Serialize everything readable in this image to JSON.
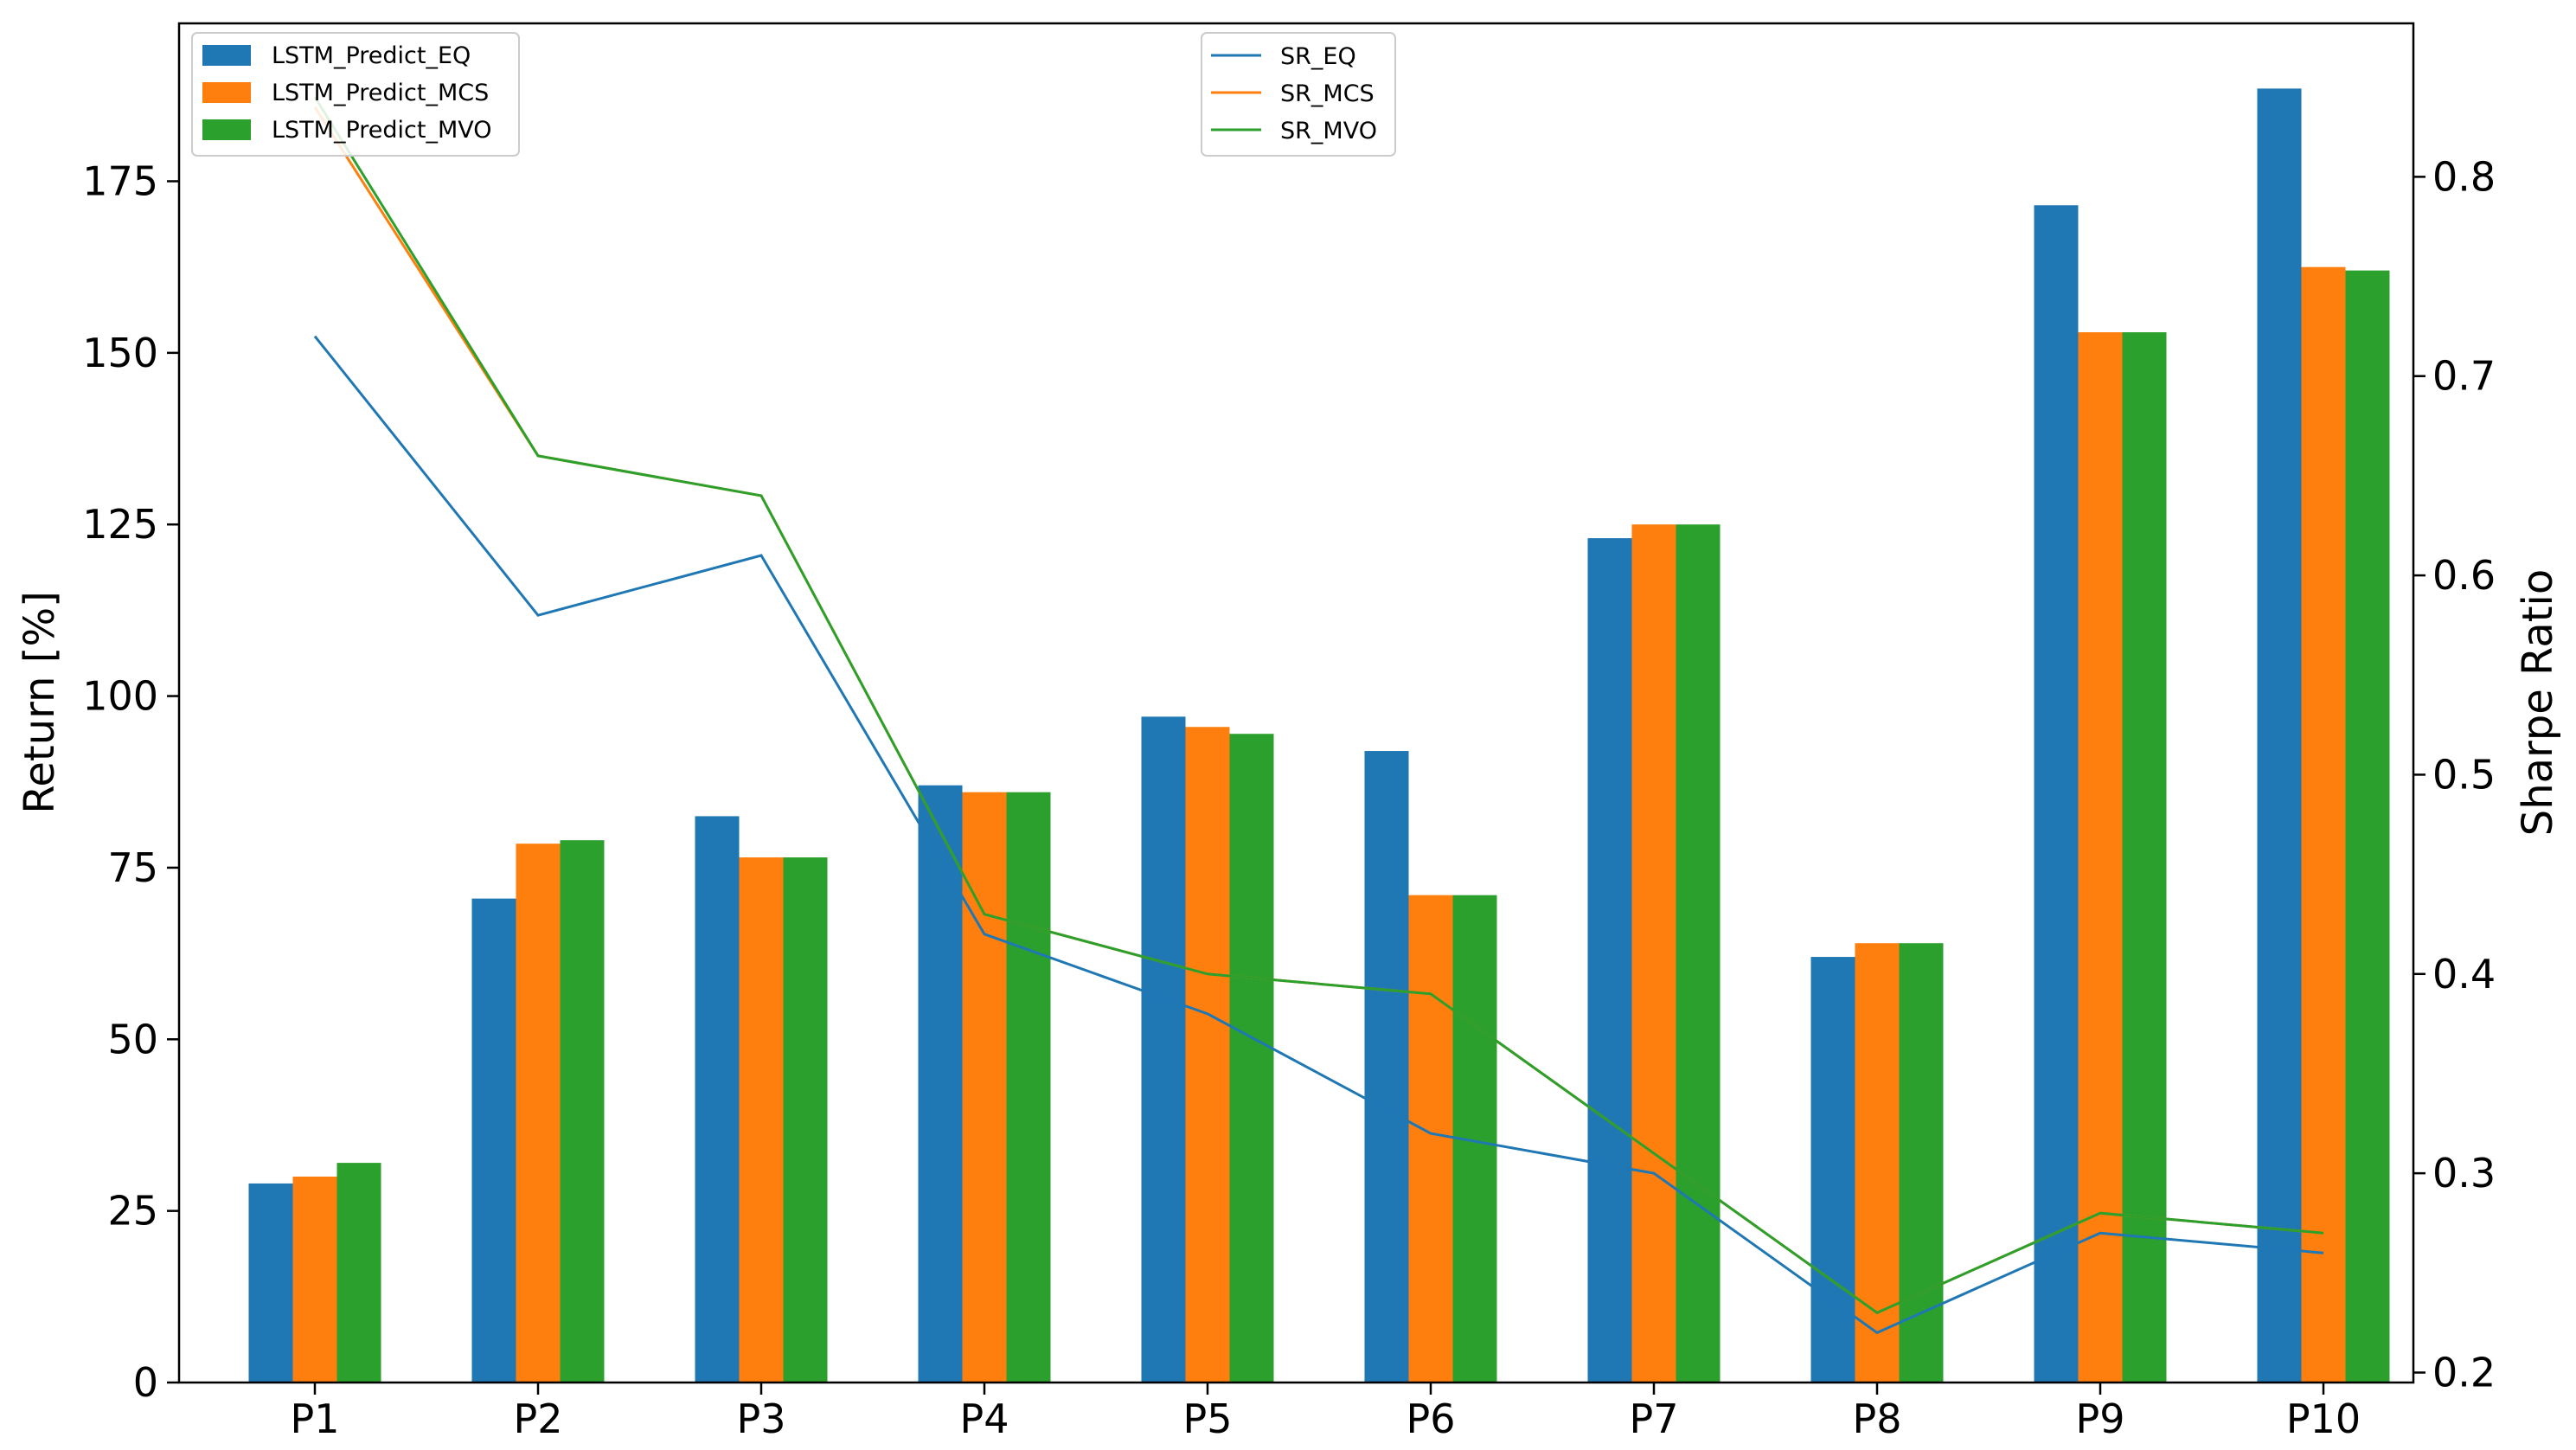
{
  "chart_data": {
    "type": "bar",
    "categories": [
      "P1",
      "P2",
      "P3",
      "P4",
      "P5",
      "P6",
      "P7",
      "P8",
      "P9",
      "P10"
    ],
    "ylabel": "Return [%]",
    "y2label": "Sharpe Ratio",
    "ylim": [
      0,
      198
    ],
    "y2lim": [
      0.195,
      0.877
    ],
    "yticks": [
      0,
      25,
      50,
      75,
      100,
      125,
      150,
      175
    ],
    "y2ticks": [
      0.2,
      0.3,
      0.4,
      0.5,
      0.6,
      0.7,
      0.8
    ],
    "grid": false,
    "bar_series": [
      {
        "name": "LSTM_Predict_EQ",
        "color": "#1f77b4",
        "values": [
          29,
          70.5,
          82.5,
          87,
          97,
          92,
          123,
          62,
          171.5,
          188.5
        ]
      },
      {
        "name": "LSTM_Predict_MCS",
        "color": "#ff7f0e",
        "values": [
          30,
          78.5,
          76.5,
          86,
          95.5,
          71,
          125,
          64,
          153,
          162.5
        ]
      },
      {
        "name": "LSTM_Predict_MVO",
        "color": "#2ca02c",
        "values": [
          32,
          79,
          76.5,
          86,
          94.5,
          71,
          125,
          64,
          153,
          162
        ]
      }
    ],
    "line_series": [
      {
        "name": "SR_EQ",
        "color": "#1f77b4",
        "axis": "right",
        "values": [
          0.72,
          0.58,
          0.61,
          0.42,
          0.38,
          0.32,
          0.3,
          0.22,
          0.27,
          0.26
        ]
      },
      {
        "name": "SR_MCS",
        "color": "#ff7f0e",
        "axis": "right",
        "values": [
          0.835,
          0.66,
          0.64,
          0.43,
          0.4,
          0.39,
          0.31,
          0.23,
          0.28,
          0.27
        ]
      },
      {
        "name": "SR_MVO",
        "color": "#2ca02c",
        "axis": "right",
        "values": [
          0.84,
          0.66,
          0.64,
          0.43,
          0.4,
          0.39,
          0.31,
          0.23,
          0.28,
          0.27
        ]
      }
    ],
    "legends": [
      {
        "placement": "top-left",
        "entries": [
          "LSTM_Predict_EQ",
          "LSTM_Predict_MCS",
          "LSTM_Predict_MVO"
        ]
      },
      {
        "placement": "top-center",
        "entries": [
          "SR_EQ",
          "SR_MCS",
          "SR_MVO"
        ]
      }
    ]
  }
}
